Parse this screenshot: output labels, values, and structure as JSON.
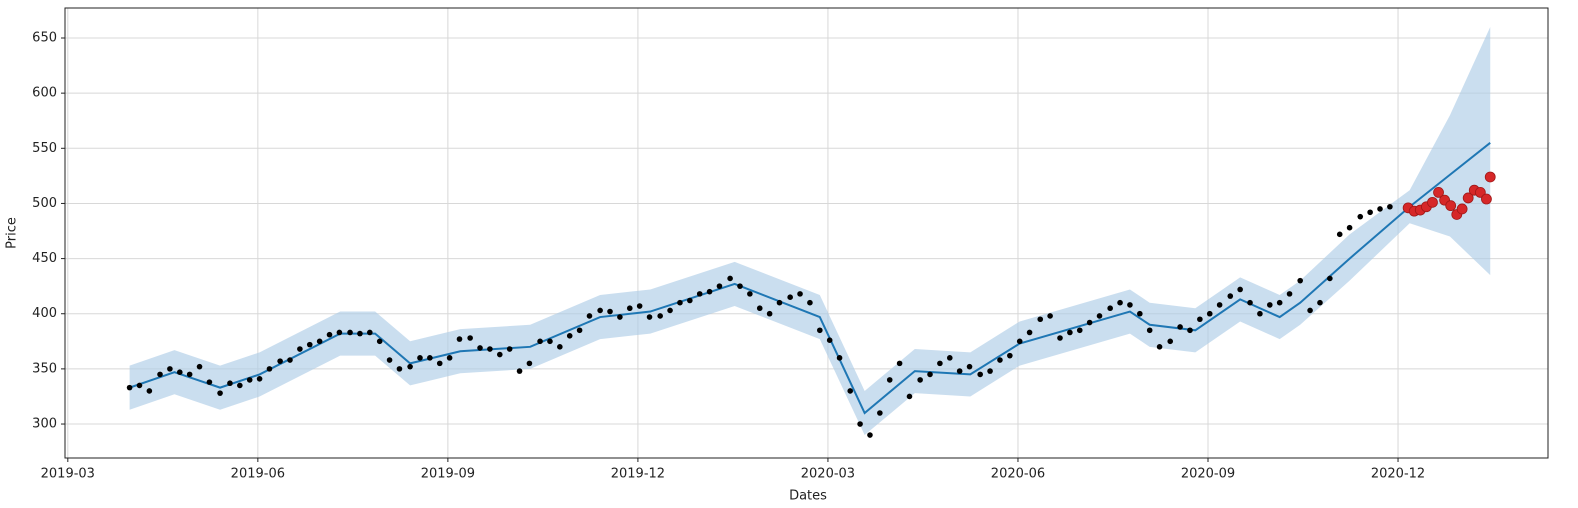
{
  "chart_data": {
    "type": "forecast",
    "xlabel": "Dates",
    "ylabel": "Price",
    "xlim": [
      2019.163,
      2021.114
    ],
    "ylim": [
      269.2,
      677.2
    ],
    "xticks": [
      {
        "value": 2019.1667,
        "label": "2019-03"
      },
      {
        "value": 2019.4167,
        "label": "2019-06"
      },
      {
        "value": 2019.6667,
        "label": "2019-09"
      },
      {
        "value": 2019.9167,
        "label": "2019-12"
      },
      {
        "value": 2020.1667,
        "label": "2020-03"
      },
      {
        "value": 2020.4167,
        "label": "2020-06"
      },
      {
        "value": 2020.6667,
        "label": "2020-09"
      },
      {
        "value": 2020.9167,
        "label": "2020-12"
      }
    ],
    "yticks": [
      300,
      350,
      400,
      450,
      500,
      550,
      600,
      650
    ],
    "grid": true,
    "points": {
      "color": "#000000",
      "x": [
        2019.248,
        2019.261,
        2019.274,
        2019.288,
        2019.301,
        2019.314,
        2019.327,
        2019.34,
        2019.353,
        2019.367,
        2019.38,
        2019.393,
        2019.406,
        2019.419,
        2019.432,
        2019.446,
        2019.459,
        2019.472,
        2019.485,
        2019.498,
        2019.511,
        2019.524,
        2019.538,
        2019.551,
        2019.564,
        2019.577,
        2019.59,
        2019.603,
        2019.617,
        2019.63,
        2019.643,
        2019.656,
        2019.669,
        2019.682,
        2019.696,
        2019.709,
        2019.722,
        2019.735,
        2019.748,
        2019.761,
        2019.774,
        2019.788,
        2019.801,
        2019.814,
        2019.827,
        2019.84,
        2019.853,
        2019.867,
        2019.88,
        2019.893,
        2019.906,
        2019.919,
        2019.932,
        2019.946,
        2019.959,
        2019.972,
        2019.985,
        2019.998,
        2020.011,
        2020.024,
        2020.038,
        2020.051,
        2020.064,
        2020.077,
        2020.09,
        2020.103,
        2020.117,
        2020.13,
        2020.143,
        2020.156,
        2020.169,
        2020.182,
        2020.196,
        2020.209,
        2020.222,
        2020.235,
        2020.248,
        2020.261,
        2020.274,
        2020.288,
        2020.301,
        2020.314,
        2020.327,
        2020.34,
        2020.353,
        2020.367,
        2020.38,
        2020.393,
        2020.406,
        2020.419,
        2020.432,
        2020.446,
        2020.459,
        2020.472,
        2020.485,
        2020.498,
        2020.511,
        2020.524,
        2020.538,
        2020.551,
        2020.564,
        2020.577,
        2020.59,
        2020.603,
        2020.617,
        2020.63,
        2020.643,
        2020.656,
        2020.669,
        2020.682,
        2020.696,
        2020.709,
        2020.722,
        2020.735,
        2020.748,
        2020.761,
        2020.774,
        2020.788,
        2020.801,
        2020.814,
        2020.827,
        2020.84,
        2020.853,
        2020.867,
        2020.88,
        2020.893,
        2020.906
      ],
      "values": [
        333,
        335,
        330,
        345,
        350,
        347,
        345,
        352,
        338,
        328,
        337,
        335,
        340,
        341,
        350,
        357,
        358,
        368,
        372,
        375,
        381,
        383,
        383,
        382,
        383,
        375,
        358,
        350,
        352,
        360,
        360,
        355,
        360,
        377,
        378,
        369,
        368,
        363,
        368,
        348,
        355,
        375,
        375,
        370,
        380,
        385,
        398,
        403,
        402,
        397,
        405,
        407,
        397,
        398,
        403,
        410,
        412,
        418,
        420,
        425,
        432,
        425,
        418,
        405,
        400,
        410,
        415,
        418,
        410,
        385,
        376,
        360,
        330,
        300,
        290,
        310,
        340,
        355,
        325,
        340,
        345,
        355,
        360,
        348,
        352,
        345,
        348,
        358,
        362,
        375,
        383,
        395,
        398,
        378,
        383,
        385,
        392,
        398,
        405,
        410,
        408,
        400,
        385,
        370,
        375,
        388,
        385,
        395,
        400,
        408,
        416,
        422,
        410,
        400,
        408,
        410,
        418,
        430,
        403,
        410,
        432,
        472,
        478,
        488,
        492,
        495,
        497
      ]
    },
    "actual": {
      "color": "#d62728",
      "x": [
        2020.93,
        2020.938,
        2020.946,
        2020.954,
        2020.962,
        2020.97,
        2020.978,
        2020.986,
        2020.994,
        2021.001,
        2021.009,
        2021.017,
        2021.025,
        2021.033,
        2021.038
      ],
      "values": [
        496,
        493,
        494,
        497,
        501,
        510,
        503,
        498,
        490,
        495,
        505,
        512,
        510,
        504,
        524
      ]
    },
    "forecast": {
      "color": "#1f77b4",
      "band_color": "#aecde6",
      "x": [
        2019.248,
        2019.307,
        2019.367,
        2019.419,
        2019.525,
        2019.571,
        2019.617,
        2019.683,
        2019.775,
        2019.867,
        2019.933,
        2020.044,
        2020.156,
        2020.215,
        2020.281,
        2020.354,
        2020.419,
        2020.564,
        2020.59,
        2020.65,
        2020.709,
        2020.761,
        2020.788,
        2020.853,
        2020.932,
        2020.985,
        2021.038
      ],
      "values": [
        333,
        347,
        333,
        345,
        382,
        382,
        355,
        366,
        370,
        397,
        402,
        427,
        397,
        310,
        348,
        345,
        373,
        402,
        390,
        385,
        413,
        397,
        410,
        450,
        497,
        526,
        555
      ],
      "upper": [
        353,
        367,
        353,
        365,
        402,
        402,
        375,
        386,
        390,
        417,
        422,
        447,
        417,
        330,
        368,
        365,
        393,
        422,
        410,
        405,
        433,
        417,
        430,
        472,
        512,
        580,
        660
      ],
      "lower": [
        313,
        327,
        313,
        325,
        362,
        362,
        335,
        346,
        350,
        377,
        382,
        407,
        377,
        290,
        328,
        325,
        353,
        382,
        370,
        365,
        393,
        377,
        390,
        430,
        482,
        470,
        435
      ]
    }
  }
}
